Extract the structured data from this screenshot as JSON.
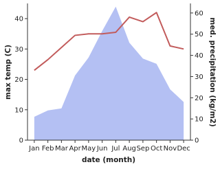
{
  "chart_data": {
    "type": "area-line",
    "x_label": "date (month)",
    "categories": [
      "Jan",
      "Feb",
      "Mar",
      "Apr",
      "May",
      "Jun",
      "Jul",
      "Aug",
      "Sep",
      "Oct",
      "Nov",
      "Dec"
    ],
    "ylabel": "max temp (C)",
    "y2label": "med. precipitation (kg/m2)",
    "ylim": [
      0,
      45
    ],
    "yticks": [
      0,
      10,
      20,
      30,
      40
    ],
    "y2lim": [
      0,
      64.5
    ],
    "y2ticks": [
      0,
      10,
      20,
      30,
      40,
      50,
      60
    ],
    "series": [
      {
        "name": "med. precipitation",
        "kind": "area",
        "axis": "y2",
        "color": "#b4c0f3",
        "values": [
          11,
          14,
          15,
          30.5,
          39,
          51.5,
          63,
          46,
          38.5,
          36,
          24,
          18
        ]
      },
      {
        "name": "max temp",
        "kind": "line",
        "axis": "y",
        "color": "#c25b5b",
        "values": [
          23,
          26.5,
          30.5,
          34.5,
          35,
          35,
          35.5,
          40.5,
          39,
          42,
          31,
          30
        ]
      }
    ]
  }
}
